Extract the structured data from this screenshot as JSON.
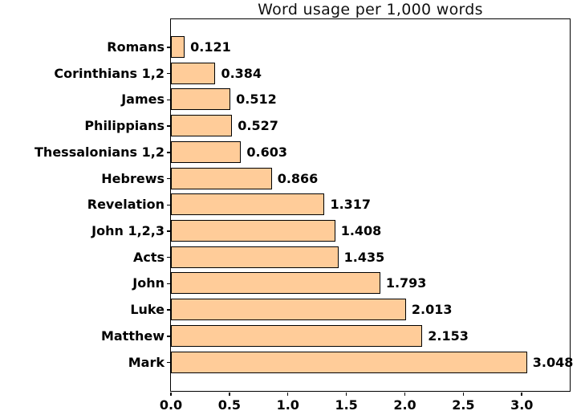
{
  "figure": {
    "background_color": "#ffffff",
    "axis_color": "#000000",
    "text_color": "#000000"
  },
  "chart_data": {
    "type": "bar",
    "orientation": "horizontal",
    "title": "Word usage per 1,000 words",
    "xlabel": "",
    "ylabel": "",
    "categories": [
      "Romans",
      "Corinthians 1,2",
      "James",
      "Philippians",
      "Thessalonians 1,2",
      "Hebrews",
      "Revelation",
      "John 1,2,3",
      "Acts",
      "John",
      "Luke",
      "Matthew",
      "Mark"
    ],
    "values": [
      0.121,
      0.384,
      0.512,
      0.527,
      0.603,
      0.866,
      1.317,
      1.408,
      1.435,
      1.793,
      2.013,
      2.153,
      3.048
    ],
    "value_labels": [
      "0.121",
      "0.384",
      "0.512",
      "0.527",
      "0.603",
      "0.866",
      "1.317",
      "1.408",
      "1.435",
      "1.793",
      "2.013",
      "2.153",
      "3.048"
    ],
    "xlim": [
      0,
      3.41
    ],
    "x_ticks": [
      0.0,
      0.5,
      1.0,
      1.5,
      2.0,
      2.5,
      3.0
    ],
    "x_tick_labels": [
      "0.0",
      "0.5",
      "1.0",
      "1.5",
      "2.0",
      "2.5",
      "3.0"
    ],
    "grid": false,
    "legend": null,
    "bar_fill_color": "#ffcc99",
    "bar_edge_color": "#000000"
  }
}
